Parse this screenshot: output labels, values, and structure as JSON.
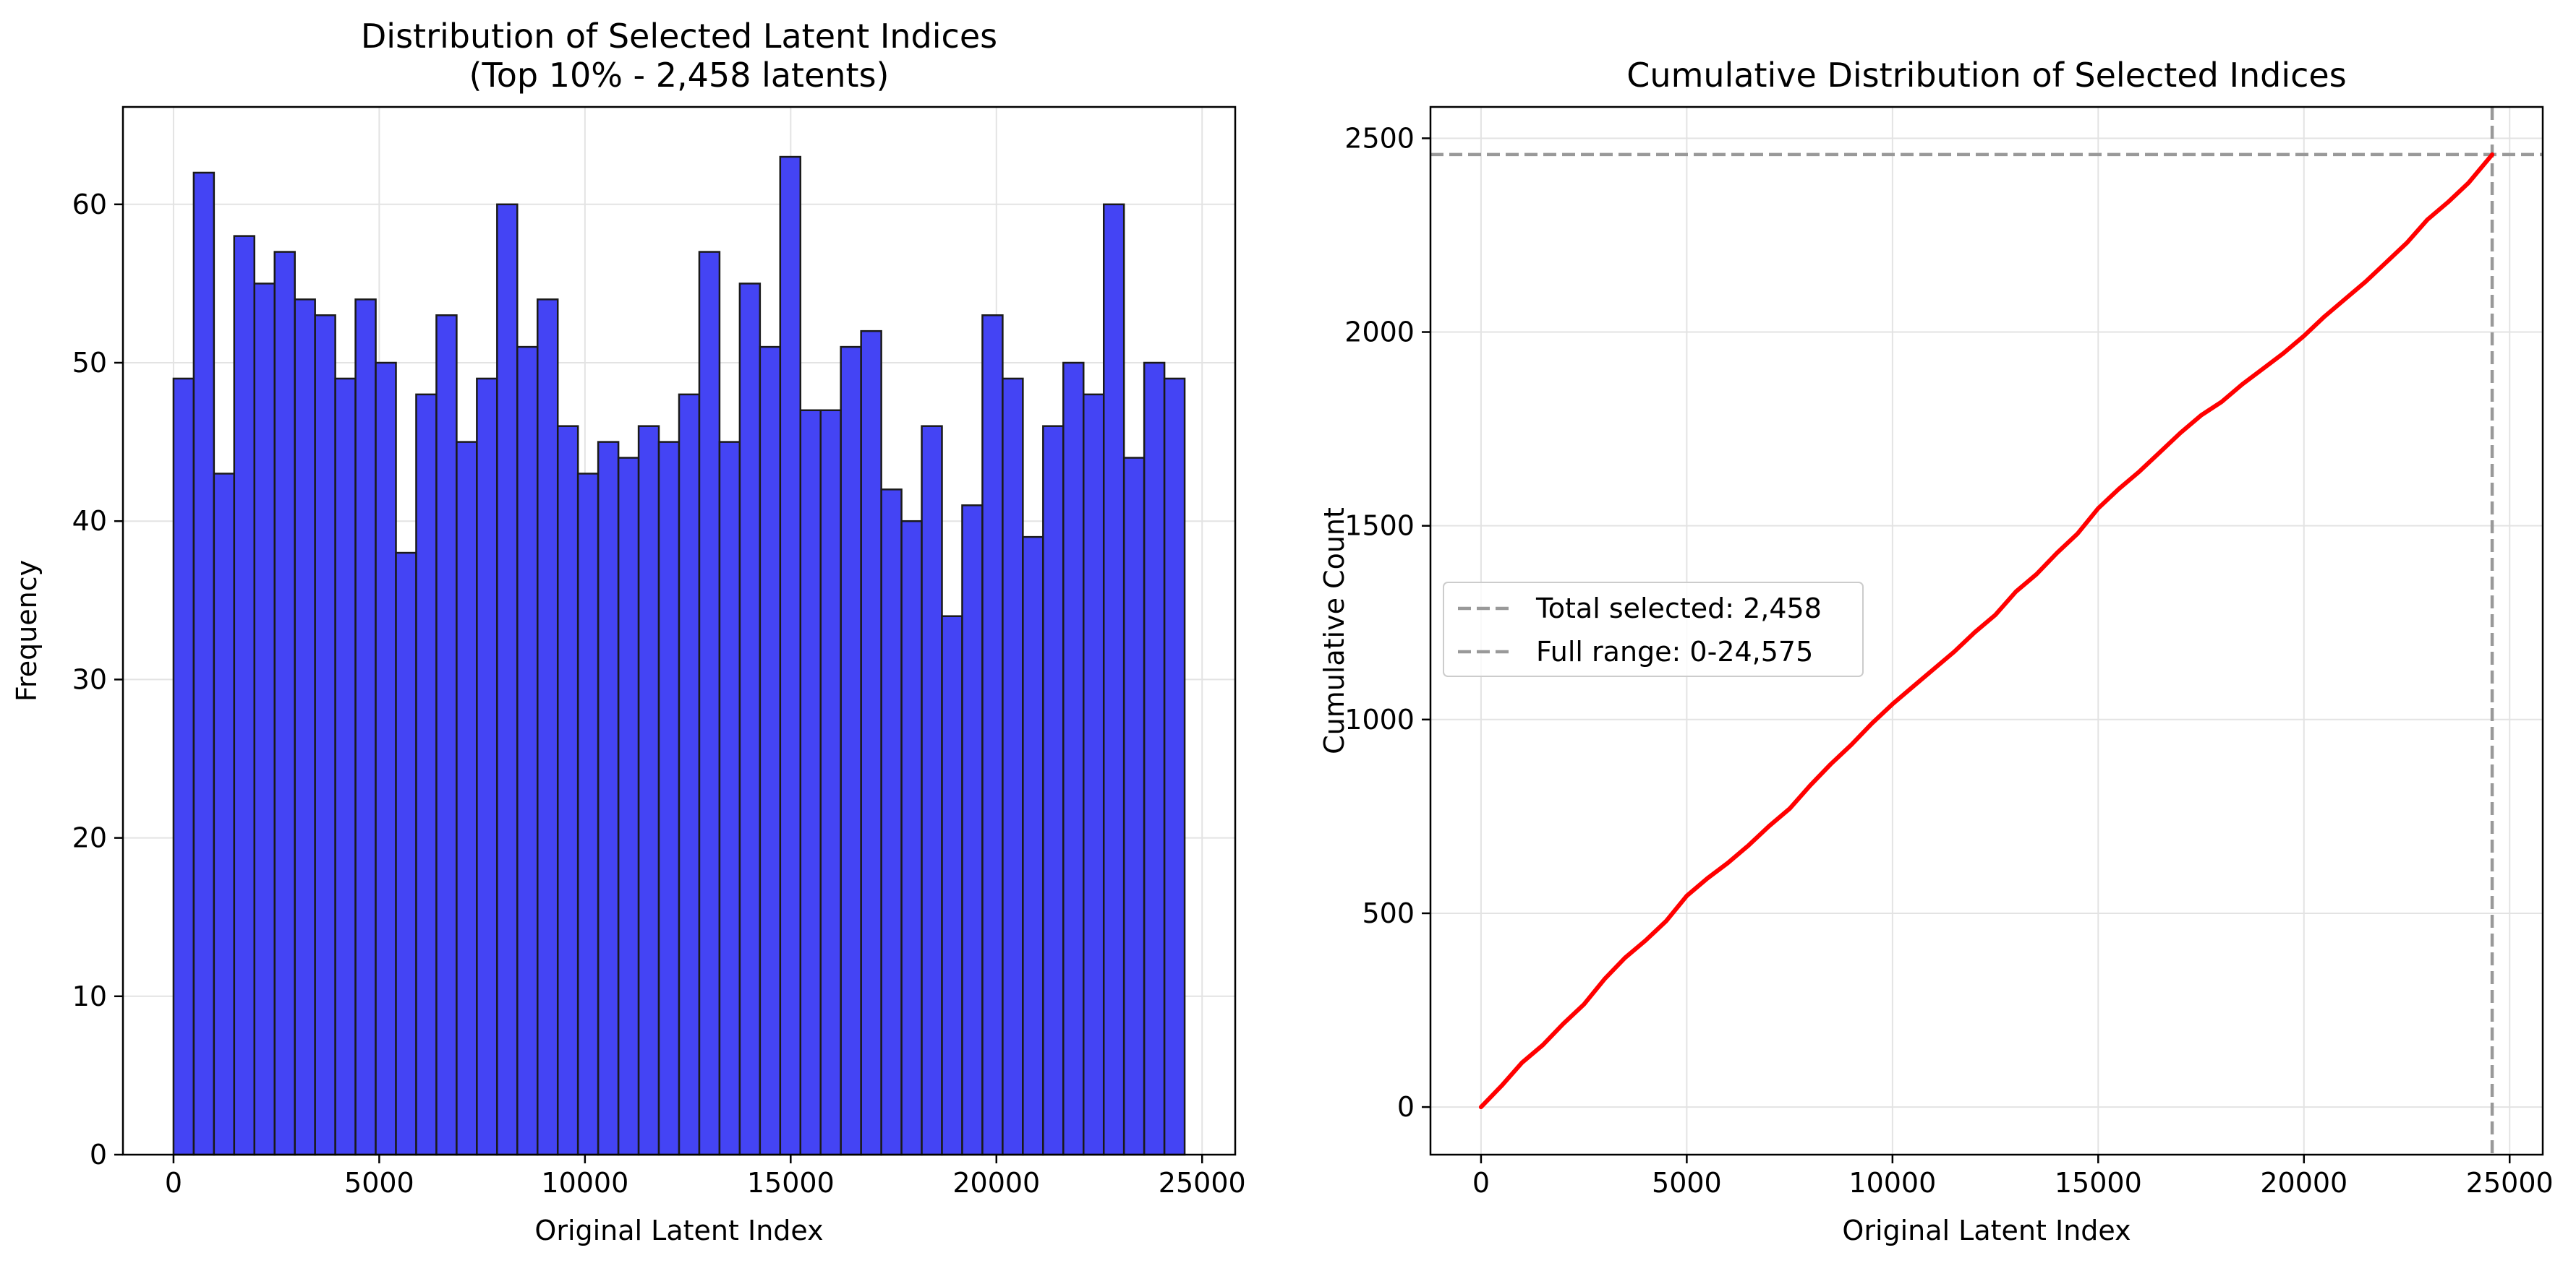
{
  "chart_data": [
    {
      "type": "bar",
      "title": "Distribution of Selected Latent Indices",
      "subtitle": "(Top 10% - 2,458 latents)",
      "xlabel": "Original Latent Index",
      "ylabel": "Frequency",
      "xlim": [
        -1229,
        25804
      ],
      "ylim": [
        0,
        66.15
      ],
      "xticks": [
        0,
        5000,
        10000,
        15000,
        20000,
        25000
      ],
      "xtick_labels": [
        "0",
        "5000",
        "10000",
        "15000",
        "20000",
        "25000"
      ],
      "yticks": [
        0,
        10,
        20,
        30,
        40,
        50,
        60
      ],
      "ytick_labels": [
        "0",
        "10",
        "20",
        "30",
        "40",
        "50",
        "60"
      ],
      "grid": true,
      "bin_range": [
        0,
        24575
      ],
      "bins": 50,
      "values": [
        49,
        62,
        43,
        58,
        55,
        57,
        54,
        53,
        49,
        54,
        50,
        38,
        48,
        53,
        45,
        49,
        60,
        51,
        54,
        46,
        43,
        45,
        44,
        46,
        45,
        48,
        57,
        45,
        55,
        51,
        63,
        47,
        47,
        51,
        52,
        42,
        40,
        46,
        34,
        41,
        53,
        49,
        39,
        46,
        50,
        48,
        60,
        44,
        50,
        49
      ],
      "bar_color": "#4444f4",
      "edge_color": "#1a1a1a"
    },
    {
      "type": "line",
      "title": "Cumulative Distribution of Selected Indices",
      "xlabel": "Original Latent Index",
      "ylabel": "Cumulative Count",
      "xlim": [
        -1229,
        25804
      ],
      "ylim": [
        -122.9,
        2580.9
      ],
      "xticks": [
        0,
        5000,
        10000,
        15000,
        20000,
        25000
      ],
      "xtick_labels": [
        "0",
        "5000",
        "10000",
        "15000",
        "20000",
        "25000"
      ],
      "yticks": [
        0,
        500,
        1000,
        1500,
        2000,
        2500
      ],
      "ytick_labels": [
        "0",
        "500",
        "1000",
        "1500",
        "2000",
        "2500"
      ],
      "grid": true,
      "series": [
        {
          "color": "#ff0000",
          "x": [
            0,
            500,
            1000,
            1500,
            2000,
            2500,
            3000,
            3500,
            4000,
            4500,
            5000,
            5500,
            6000,
            6500,
            7000,
            7500,
            8000,
            8500,
            9000,
            9500,
            10000,
            10500,
            11000,
            11500,
            12000,
            12500,
            13000,
            13500,
            14000,
            14500,
            15000,
            15500,
            16000,
            16500,
            17000,
            17500,
            18000,
            18500,
            19000,
            19500,
            20000,
            20500,
            21000,
            21500,
            22000,
            22500,
            23000,
            23500,
            24000,
            24575
          ],
          "y": [
            0,
            55,
            115,
            160,
            215,
            265,
            330,
            385,
            430,
            480,
            545,
            590,
            630,
            675,
            725,
            770,
            830,
            885,
            935,
            990,
            1040,
            1085,
            1130,
            1175,
            1225,
            1270,
            1330,
            1375,
            1430,
            1480,
            1545,
            1595,
            1640,
            1690,
            1740,
            1785,
            1820,
            1865,
            1905,
            1945,
            1990,
            2040,
            2085,
            2130,
            2180,
            2230,
            2290,
            2335,
            2385,
            2458
          ]
        }
      ],
      "reference_lines": [
        {
          "orientation": "horizontal",
          "value": 2458,
          "color": "#999999",
          "style": "dashed"
        },
        {
          "orientation": "vertical",
          "value": 24575,
          "color": "#999999",
          "style": "dashed"
        }
      ],
      "legend": {
        "placement": "center-left",
        "entries": [
          "Total selected: 2,458",
          "Full range: 0-24,575"
        ]
      }
    }
  ]
}
